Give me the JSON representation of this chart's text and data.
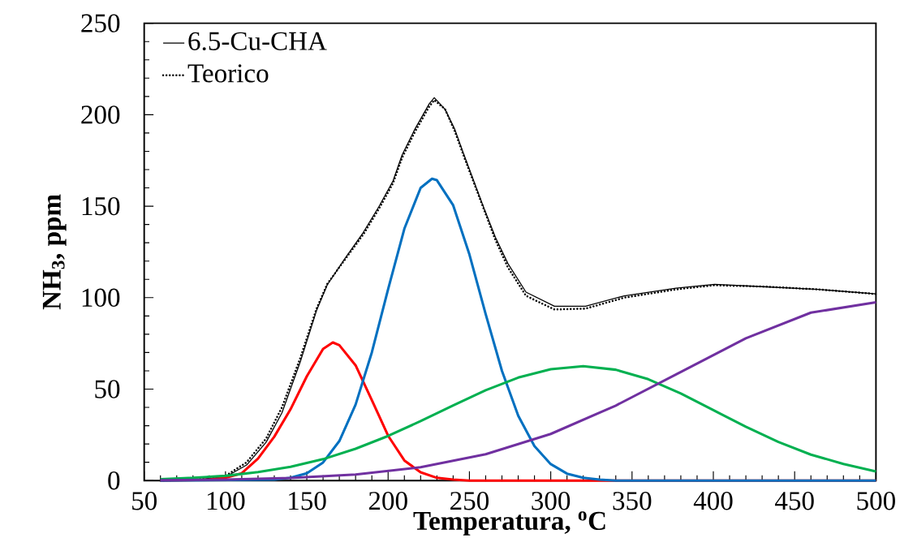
{
  "chart_data": {
    "type": "line",
    "xlabel": "Temperatura, $^{o}$C",
    "ylabel": "NH$_{3}$, ppm",
    "xlim": [
      50,
      500
    ],
    "ylim": [
      0,
      250
    ],
    "xticks": [
      50,
      100,
      150,
      200,
      250,
      300,
      350,
      400,
      450,
      500
    ],
    "yticks": [
      0,
      50,
      100,
      150,
      200,
      250
    ],
    "legend": "top left",
    "series": [
      {
        "name": "6.5-Cu-CHA",
        "color": "#000000",
        "x": [
          60,
          80,
          100,
          113,
          125,
          134.7,
          146,
          156,
          162.6,
          173.6,
          184.7,
          194.3,
          203,
          208.6,
          216.4,
          225.3,
          228.4,
          235,
          241,
          246.7,
          258.6,
          266,
          273.7,
          284.8,
          302.3,
          321.4,
          345.2,
          377,
          400.8,
          432.6,
          464.4,
          500
        ],
        "values": [
          0,
          0.3,
          2,
          8.5,
          21,
          37,
          65,
          93,
          107,
          121.6,
          135.6,
          149.7,
          163.8,
          178,
          192,
          206,
          209.3,
          203,
          192,
          178,
          149.7,
          133,
          118.6,
          103,
          95.3,
          95.3,
          101,
          105.2,
          107.3,
          105.9,
          104.5,
          102.1
        ]
      },
      {
        "name": "Teorico",
        "color": "#000000",
        "line_style": "dotted",
        "x": [
          60,
          80,
          100,
          113,
          125,
          134.7,
          146,
          156,
          162.6,
          173.6,
          184.7,
          194.3,
          203,
          208.6,
          216.4,
          225.3,
          228.4,
          235,
          241,
          246.7,
          258.6,
          266,
          273.7,
          284.8,
          302.3,
          321.4,
          345.2,
          377,
          400.8,
          432.6,
          464.4,
          500
        ],
        "values": [
          0,
          0.5,
          2.5,
          10,
          23,
          40,
          67,
          94,
          107.5,
          121,
          134.5,
          148.5,
          162.5,
          176.5,
          190.5,
          204.5,
          208,
          203,
          191,
          177,
          149,
          131.5,
          116.5,
          101,
          93.5,
          94,
          100,
          104.5,
          106.8,
          106,
          104.5,
          102
        ]
      },
      {
        "color": "#ff0000",
        "x": [
          60,
          90,
          100,
          110,
          120,
          130,
          140,
          150,
          160,
          166,
          170,
          180,
          190,
          200,
          210,
          220,
          230,
          240,
          250,
          500
        ],
        "values": [
          0,
          0.5,
          1.5,
          4,
          12,
          24,
          39,
          57,
          72,
          75.5,
          74,
          63,
          44,
          24.5,
          11,
          4.5,
          1.5,
          0.5,
          0,
          0
        ]
      },
      {
        "color": "#0070c0",
        "x": [
          60,
          130,
          140,
          150,
          160,
          170,
          180,
          190,
          200,
          210,
          220,
          227,
          230,
          240,
          250,
          260,
          270,
          280,
          290,
          300,
          310,
          320,
          330,
          340,
          500
        ],
        "values": [
          0,
          0.5,
          1.5,
          4,
          9.9,
          21.6,
          41.5,
          70.1,
          104.6,
          137.7,
          160,
          165,
          164.2,
          150.5,
          123.6,
          91,
          60,
          35.5,
          18.8,
          9,
          3.8,
          1.5,
          0.5,
          0,
          0
        ]
      },
      {
        "color": "#00b050",
        "x": [
          60,
          80,
          100,
          120,
          140,
          160,
          180,
          200,
          220,
          240,
          260,
          280,
          300,
          320,
          340,
          360,
          380,
          400,
          420,
          440,
          460,
          480,
          500
        ],
        "values": [
          0.8,
          1.5,
          2.6,
          4.6,
          7.5,
          11.7,
          17.4,
          24.4,
          32.5,
          41.1,
          49.4,
          56.3,
          60.9,
          62.5,
          60.6,
          55.4,
          47.6,
          38.5,
          29.4,
          21.1,
          14.2,
          9.1,
          5
        ]
      },
      {
        "color": "#7030a0",
        "x": [
          60,
          100,
          140,
          180,
          220,
          260,
          300,
          340,
          380,
          420,
          460,
          500
        ],
        "values": [
          0.2,
          0.5,
          1.4,
          3.3,
          7.3,
          14.4,
          25.5,
          41,
          59.4,
          77.8,
          91.8,
          97.5
        ]
      }
    ]
  }
}
